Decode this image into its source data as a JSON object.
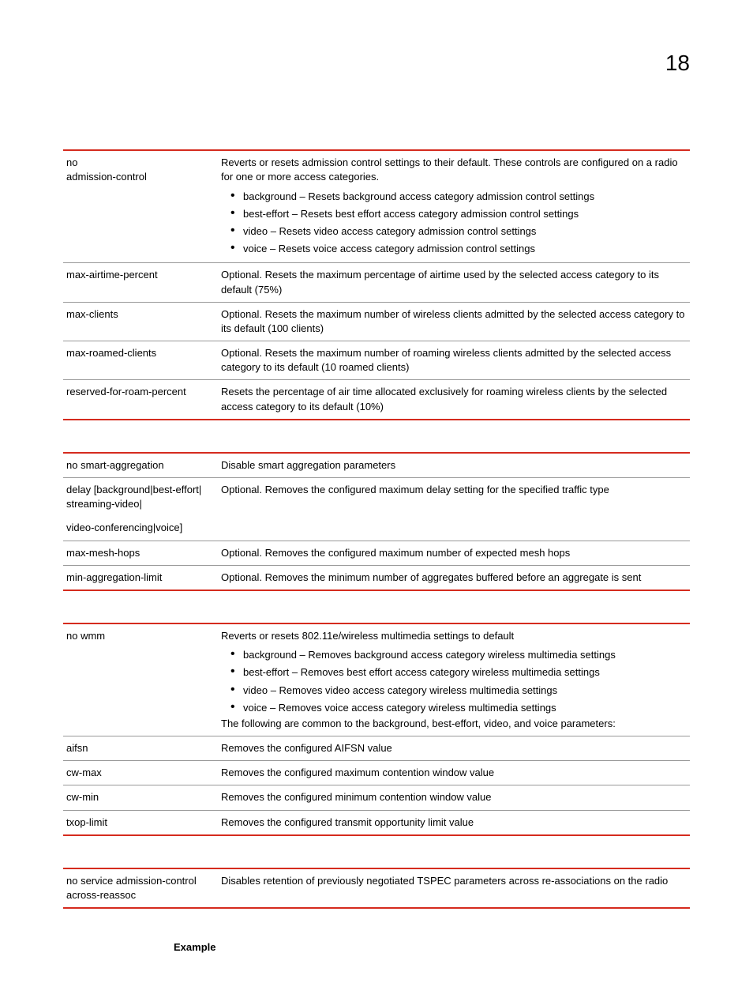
{
  "page_number": "18",
  "colors": {
    "rule": "#d52b1e",
    "row_border": "#999999",
    "text": "#000000",
    "background": "#ffffff"
  },
  "table1": {
    "rows": [
      {
        "left": "no\nadmission-control",
        "right_intro": "Reverts or resets admission control settings to their default. These controls are configured on a radio for one or more access categories.",
        "bullets": [
          "background – Resets background access category admission control settings",
          "best-effort – Resets best effort access category admission control settings",
          "video – Resets video access category admission control settings",
          "voice – Resets voice access category admission control settings"
        ]
      },
      {
        "left": "max-airtime-percent",
        "right": "Optional. Resets the maximum percentage of airtime used by the selected access category to its default (75%)"
      },
      {
        "left": "max-clients",
        "right": "Optional. Resets the maximum number of wireless clients admitted by the selected access category to its default (100 clients)"
      },
      {
        "left": "max-roamed-clients",
        "right": "Optional. Resets the maximum number of roaming wireless clients admitted by the selected access category to its default (10 roamed clients)"
      },
      {
        "left": "reserved-for-roam-percent",
        "right": "Resets the percentage of air time allocated exclusively for roaming wireless clients by the selected access category to its default (10%)"
      }
    ]
  },
  "table2": {
    "rows": [
      {
        "left": "no smart-aggregation",
        "right": "Disable smart aggregation parameters"
      },
      {
        "left": "delay [background|best-effort| streaming-video|",
        "right": "Optional. Removes the configured maximum delay setting for the specified traffic type"
      },
      {
        "left": "video-conferencing|voice]",
        "right": ""
      },
      {
        "left": "max-mesh-hops",
        "right": "Optional. Removes the configured maximum number of expected mesh hops"
      },
      {
        "left": "min-aggregation-limit",
        "right": "Optional. Removes the minimum number of aggregates buffered before an aggregate is sent"
      }
    ]
  },
  "table3": {
    "rows": [
      {
        "left": "no wmm",
        "right_intro": "Reverts or resets 802.11e/wireless multimedia settings to default",
        "bullets": [
          "background – Removes background access category wireless multimedia settings",
          "best-effort – Removes best effort access category wireless multimedia settings",
          "video – Removes video access category wireless multimedia settings",
          "voice – Removes voice access category wireless multimedia settings"
        ],
        "right_outro": "The following are common to the background, best-effort, video, and voice parameters:"
      },
      {
        "left": "aifsn",
        "right": "Removes the configured AIFSN value"
      },
      {
        "left": "cw-max",
        "right": "Removes the configured maximum contention window value"
      },
      {
        "left": "cw-min",
        "right": "Removes the configured minimum contention window value"
      },
      {
        "left": "txop-limit",
        "right": "Removes the configured transmit opportunity limit value"
      }
    ]
  },
  "table4": {
    "rows": [
      {
        "left": "no service admission-control across-reassoc",
        "right": "Disables retention of previously negotiated TSPEC parameters across re-associations on the radio"
      }
    ]
  },
  "example_label": "Example"
}
